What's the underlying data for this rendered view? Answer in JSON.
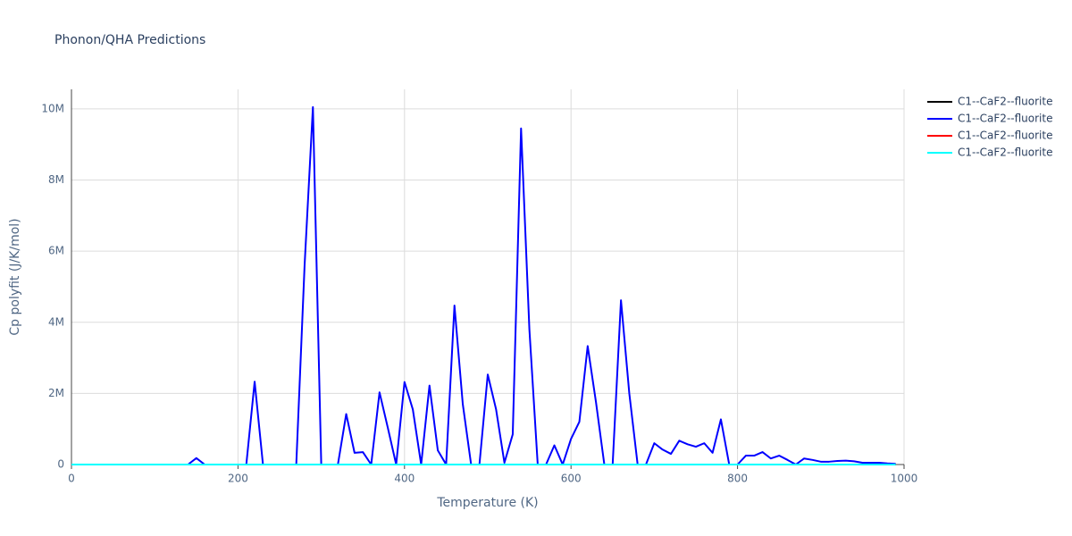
{
  "chart_data": {
    "type": "line",
    "title": "Phonon/QHA Predictions",
    "x_label": "Temperature (K)",
    "y_label": "Cp polyfit (J/K/mol)",
    "x": [
      0,
      10,
      20,
      30,
      40,
      50,
      60,
      70,
      80,
      90,
      100,
      110,
      120,
      130,
      140,
      150,
      160,
      170,
      180,
      190,
      200,
      210,
      220,
      230,
      240,
      250,
      260,
      270,
      280,
      290,
      300,
      310,
      320,
      330,
      340,
      350,
      360,
      370,
      380,
      390,
      400,
      410,
      420,
      430,
      440,
      450,
      460,
      470,
      480,
      490,
      500,
      510,
      520,
      530,
      540,
      550,
      560,
      570,
      580,
      590,
      600,
      610,
      620,
      630,
      640,
      650,
      660,
      670,
      680,
      690,
      700,
      710,
      720,
      730,
      740,
      750,
      760,
      770,
      780,
      790,
      800,
      810,
      820,
      830,
      840,
      850,
      860,
      870,
      880,
      890,
      900,
      910,
      920,
      930,
      940,
      950,
      960,
      970,
      980,
      990
    ],
    "series": [
      {
        "name": "C1--CaF2--fluorite",
        "color": "#000000",
        "values": [
          0,
          0,
          0,
          0,
          0,
          0,
          0,
          0,
          0,
          0,
          0,
          0,
          0,
          0,
          0,
          0,
          0,
          0,
          0,
          0,
          0,
          0,
          0,
          0,
          0,
          0,
          0,
          0,
          0,
          0,
          0,
          0,
          0,
          0,
          0,
          0,
          0,
          0,
          0,
          0,
          0,
          0,
          0,
          0,
          0,
          0,
          0,
          0,
          0,
          0,
          0,
          0,
          0,
          0,
          0,
          0,
          0,
          0,
          0,
          0,
          0,
          0,
          0,
          0,
          0,
          0,
          0,
          0,
          0,
          0,
          0,
          0,
          0,
          0,
          0,
          0,
          0,
          0,
          0,
          0,
          0,
          0,
          0,
          0,
          0,
          0,
          0,
          0,
          0,
          0,
          0,
          0,
          0,
          0,
          0,
          0,
          0,
          0,
          0,
          0
        ]
      },
      {
        "name": "C1--CaF2--fluorite",
        "color": "#0000ff",
        "values": [
          0,
          0,
          0,
          0,
          0,
          0,
          0,
          0,
          0,
          0,
          0,
          0,
          0,
          0,
          0,
          180000,
          0,
          0,
          0,
          0,
          0,
          0,
          2330000,
          0,
          0,
          0,
          0,
          0,
          5600000,
          10050000,
          0,
          0,
          0,
          1420000,
          330000,
          350000,
          0,
          2030000,
          1030000,
          0,
          2320000,
          1550000,
          0,
          2220000,
          400000,
          0,
          4470000,
          1700000,
          0,
          0,
          2530000,
          1550000,
          50000,
          850000,
          9450000,
          3800000,
          0,
          0,
          540000,
          0,
          720000,
          1200000,
          3330000,
          1750000,
          0,
          0,
          4620000,
          2000000,
          0,
          0,
          600000,
          420000,
          300000,
          670000,
          570000,
          500000,
          600000,
          330000,
          1270000,
          0,
          0,
          250000,
          250000,
          350000,
          170000,
          250000,
          130000,
          0,
          170000,
          130000,
          80000,
          80000,
          100000,
          110000,
          90000,
          50000,
          50000,
          50000,
          30000,
          20000
        ]
      },
      {
        "name": "C1--CaF2--fluorite",
        "color": "#ff0000",
        "values": [
          0,
          0,
          0,
          0,
          0,
          0,
          0,
          0,
          0,
          0,
          0,
          0,
          0,
          0,
          0,
          0,
          0,
          0,
          0,
          0,
          0,
          0,
          0,
          0,
          0,
          0,
          0,
          0,
          0,
          0,
          0,
          0,
          0,
          0,
          0,
          0,
          0,
          0,
          0,
          0,
          0,
          0,
          0,
          0,
          0,
          0,
          0,
          0,
          0,
          0,
          0,
          0,
          0,
          0,
          0,
          0,
          0,
          0,
          0,
          0,
          0,
          0,
          0,
          0,
          0,
          0,
          0,
          0,
          0,
          0,
          0,
          0,
          0,
          0,
          0,
          0,
          0,
          0,
          0,
          0,
          0,
          0,
          0,
          0,
          0,
          0,
          0,
          0,
          0,
          0,
          0,
          0,
          0,
          0,
          0,
          0,
          0,
          0,
          0,
          0
        ]
      },
      {
        "name": "C1--CaF2--fluorite",
        "color": "#00ffff",
        "values": [
          0,
          0,
          0,
          0,
          0,
          0,
          0,
          0,
          0,
          0,
          0,
          0,
          0,
          0,
          0,
          0,
          0,
          0,
          0,
          0,
          0,
          0,
          0,
          0,
          0,
          0,
          0,
          0,
          0,
          0,
          0,
          0,
          0,
          0,
          0,
          0,
          0,
          0,
          0,
          0,
          0,
          0,
          0,
          0,
          0,
          0,
          0,
          0,
          0,
          0,
          0,
          0,
          0,
          0,
          0,
          0,
          0,
          0,
          0,
          0,
          0,
          0,
          0,
          0,
          0,
          0,
          0,
          0,
          0,
          0,
          0,
          0,
          0,
          0,
          0,
          0,
          0,
          0,
          0,
          0,
          0,
          0,
          0,
          0,
          0,
          0,
          0,
          0,
          0,
          0,
          0,
          0,
          0,
          0,
          0,
          0,
          0,
          0,
          0,
          0
        ]
      }
    ],
    "xlim": [
      0,
      1000
    ],
    "xticks": [
      0,
      200,
      400,
      600,
      800,
      1000
    ],
    "ylim": [
      0,
      10550000
    ],
    "yticks": [
      0,
      {
        "value": 2000000,
        "label": "2M"
      },
      {
        "value": 4000000,
        "label": "4M"
      },
      {
        "value": 6000000,
        "label": "6M"
      },
      {
        "value": 8000000,
        "label": "8M"
      },
      {
        "value": 10000000,
        "label": "10M"
      }
    ],
    "grid": true,
    "legend": "right"
  }
}
